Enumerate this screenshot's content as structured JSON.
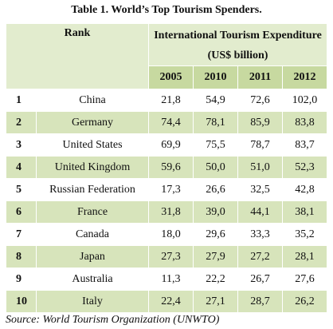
{
  "title": "Table 1. World’s Top Tourism Spenders.",
  "table": {
    "rank_header": "Rank",
    "metric_header": "International Tourism Expenditure (US$ billion)",
    "years": [
      "2005",
      "2010",
      "2011",
      "2012"
    ],
    "rows": [
      {
        "rank": "1",
        "country": "China",
        "values": [
          "21,8",
          "54,9",
          "72,6",
          "102,0"
        ]
      },
      {
        "rank": "2",
        "country": "Germany",
        "values": [
          "74,4",
          "78,1",
          "85,9",
          "83,8"
        ]
      },
      {
        "rank": "3",
        "country": "United States",
        "values": [
          "69,9",
          "75,5",
          "78,7",
          "83,7"
        ]
      },
      {
        "rank": "4",
        "country": "United Kingdom",
        "values": [
          "59,6",
          "50,0",
          "51,0",
          "52,3"
        ]
      },
      {
        "rank": "5",
        "country": "Russian Federation",
        "values": [
          "17,3",
          "26,6",
          "32,5",
          "42,8"
        ]
      },
      {
        "rank": "6",
        "country": "France",
        "values": [
          "31,8",
          "39,0",
          "44,1",
          "38,1"
        ]
      },
      {
        "rank": "7",
        "country": "Canada",
        "values": [
          "18,0",
          "29,6",
          "33,3",
          "35,2"
        ]
      },
      {
        "rank": "8",
        "country": "Japan",
        "values": [
          "27,3",
          "27,9",
          "27,2",
          "28,1"
        ]
      },
      {
        "rank": "9",
        "country": "Australia",
        "values": [
          "11,3",
          "22,2",
          "26,7",
          "27,6"
        ]
      },
      {
        "rank": "10",
        "country": "Italy",
        "values": [
          "22,4",
          "27,1",
          "28,7",
          "26,2"
        ]
      }
    ]
  },
  "source": "Source: World Tourism Organization (UNWTO)",
  "colors": {
    "header_dark": "#c7d9a0",
    "header_light": "#e2ecce",
    "row_alt": "#d7e4bb",
    "row_plain": "#ffffff"
  }
}
